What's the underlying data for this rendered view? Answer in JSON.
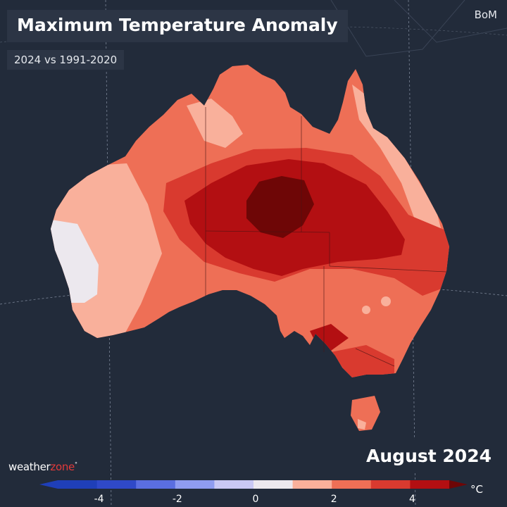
{
  "title": "Maximum Temperature Anomaly",
  "subtitle": "2024 vs 1991-2020",
  "source": "BoM",
  "date": "August 2024",
  "logo": {
    "prefix": "weather",
    "accent": "zone",
    "mark": "°"
  },
  "legend": {
    "unit": "°C",
    "ticks": [
      "-4",
      "-2",
      "0",
      "2",
      "4"
    ],
    "bins": [
      {
        "from": -5,
        "to": -4,
        "color": "#1f3fb8"
      },
      {
        "from": -4,
        "to": -3,
        "color": "#2f49c8"
      },
      {
        "from": -3,
        "to": -2,
        "color": "#5a6ee0"
      },
      {
        "from": -2,
        "to": -1,
        "color": "#8f9cf0"
      },
      {
        "from": -1,
        "to": 0,
        "color": "#c9c8f4"
      },
      {
        "from": 0,
        "to": 1,
        "color": "#ece8ee"
      },
      {
        "from": 1,
        "to": 2,
        "color": "#f9b09b"
      },
      {
        "from": 2,
        "to": 3,
        "color": "#ee6f56"
      },
      {
        "from": 3,
        "to": 4,
        "color": "#d93a2f"
      },
      {
        "from": 4,
        "to": 5,
        "color": "#b30f12"
      }
    ]
  },
  "colors": {
    "background": "#222b3a",
    "land_base": "#ee6f56",
    "anomaly_0_1": "#ece8ee",
    "anomaly_1_2": "#f9b09b",
    "anomaly_2_3": "#ee6f56",
    "anomaly_3_4": "#d93a2f",
    "anomaly_4_5": "#b30f12",
    "anomaly_5_plus": "#6e0606"
  }
}
